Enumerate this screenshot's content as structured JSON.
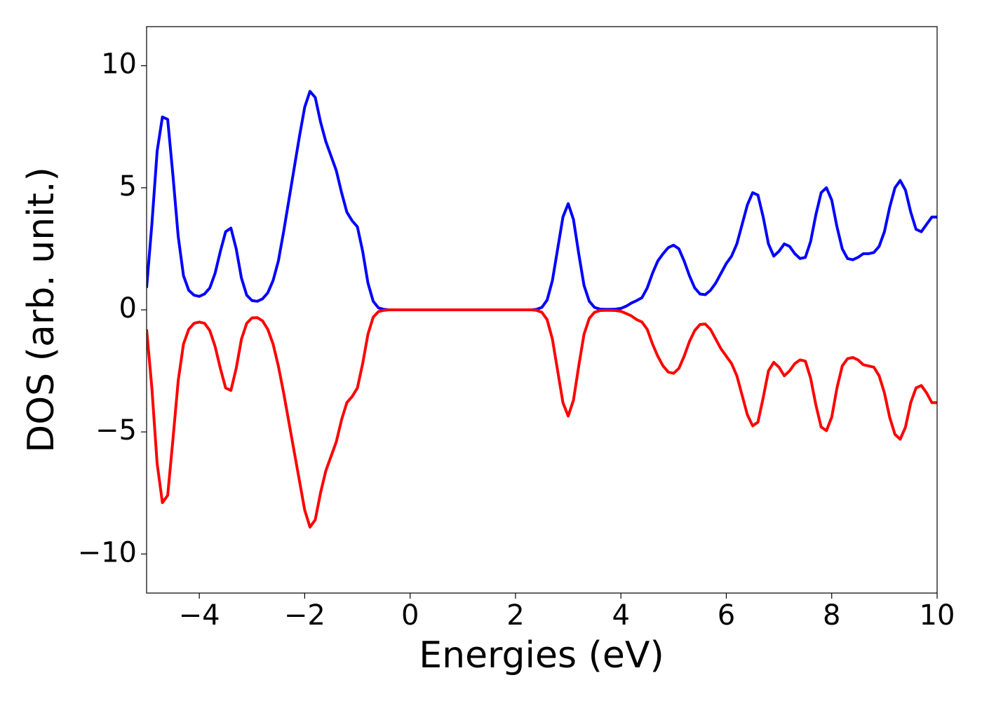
{
  "chart_data": {
    "type": "line",
    "xlabel": "Energies (eV)",
    "ylabel": "DOS (arb. unit.)",
    "xlim": [
      -5,
      10
    ],
    "ylim": [
      -11.6,
      11.6
    ],
    "xticks": [
      {
        "value": -4,
        "label": "−4"
      },
      {
        "value": -2,
        "label": "−2"
      },
      0,
      2,
      4,
      6,
      8,
      10
    ],
    "yticks": [
      {
        "value": -10,
        "label": "−10"
      },
      {
        "value": -5,
        "label": "−5"
      },
      0,
      5,
      10
    ],
    "grid": false,
    "x": [
      -5.0,
      -4.9,
      -4.8,
      -4.7,
      -4.6,
      -4.5,
      -4.4,
      -4.3,
      -4.2,
      -4.1,
      -4.0,
      -3.9,
      -3.8,
      -3.7,
      -3.6,
      -3.5,
      -3.4,
      -3.3,
      -3.2,
      -3.1,
      -3.0,
      -2.9,
      -2.8,
      -2.7,
      -2.6,
      -2.5,
      -2.4,
      -2.3,
      -2.2,
      -2.1,
      -2.0,
      -1.9,
      -1.8,
      -1.7,
      -1.6,
      -1.5,
      -1.4,
      -1.3,
      -1.2,
      -1.1,
      -1.0,
      -0.9,
      -0.8,
      -0.7,
      -0.6,
      -0.5,
      -0.4,
      -0.2,
      0,
      0.5,
      1,
      1.5,
      2,
      2.2,
      2.3,
      2.4,
      2.5,
      2.6,
      2.7,
      2.8,
      2.9,
      3.0,
      3.1,
      3.2,
      3.3,
      3.4,
      3.5,
      3.6,
      3.7,
      3.8,
      3.9,
      4.0,
      4.1,
      4.2,
      4.3,
      4.4,
      4.5,
      4.6,
      4.7,
      4.8,
      4.9,
      5.0,
      5.1,
      5.2,
      5.3,
      5.4,
      5.5,
      5.6,
      5.7,
      5.8,
      5.9,
      6.0,
      6.1,
      6.2,
      6.3,
      6.4,
      6.5,
      6.6,
      6.7,
      6.8,
      6.9,
      7.0,
      7.1,
      7.2,
      7.3,
      7.4,
      7.5,
      7.6,
      7.7,
      7.8,
      7.9,
      8.0,
      8.1,
      8.2,
      8.3,
      8.4,
      8.5,
      8.6,
      8.7,
      8.8,
      8.9,
      9.0,
      9.1,
      9.2,
      9.3,
      9.4,
      9.5,
      9.6,
      9.7,
      9.8,
      9.9,
      10.0
    ],
    "series": [
      {
        "color": "#0000ff",
        "values": [
          0.9,
          3.5,
          6.5,
          7.9,
          7.8,
          5.5,
          3.0,
          1.4,
          0.8,
          0.6,
          0.55,
          0.65,
          0.9,
          1.5,
          2.4,
          3.2,
          3.35,
          2.5,
          1.3,
          0.6,
          0.38,
          0.35,
          0.45,
          0.7,
          1.2,
          2.0,
          3.2,
          4.5,
          5.8,
          7.1,
          8.3,
          8.95,
          8.7,
          7.7,
          6.9,
          6.3,
          5.7,
          4.8,
          4.0,
          3.65,
          3.4,
          2.4,
          1.1,
          0.35,
          0.08,
          0.02,
          0,
          0,
          0,
          0,
          0,
          0,
          0,
          0,
          0,
          0.02,
          0.1,
          0.4,
          1.2,
          2.5,
          3.8,
          4.35,
          3.7,
          2.3,
          1.0,
          0.35,
          0.1,
          0.03,
          0.02,
          0.02,
          0.03,
          0.06,
          0.15,
          0.28,
          0.38,
          0.5,
          0.9,
          1.5,
          2.0,
          2.3,
          2.55,
          2.65,
          2.5,
          2.0,
          1.4,
          0.9,
          0.65,
          0.62,
          0.8,
          1.1,
          1.5,
          1.9,
          2.2,
          2.7,
          3.5,
          4.3,
          4.8,
          4.7,
          3.8,
          2.7,
          2.2,
          2.4,
          2.7,
          2.6,
          2.3,
          2.1,
          2.15,
          2.8,
          3.9,
          4.8,
          5.0,
          4.5,
          3.4,
          2.5,
          2.1,
          2.05,
          2.15,
          2.3,
          2.3,
          2.35,
          2.6,
          3.2,
          4.2,
          5.0,
          5.3,
          4.9,
          4.0,
          3.3,
          3.2,
          3.5,
          3.8,
          3.8
        ]
      },
      {
        "color": "#ff0000",
        "values": [
          -0.8,
          -3.2,
          -6.3,
          -7.9,
          -7.6,
          -5.3,
          -2.9,
          -1.4,
          -0.8,
          -0.55,
          -0.5,
          -0.55,
          -0.85,
          -1.5,
          -2.4,
          -3.2,
          -3.3,
          -2.4,
          -1.2,
          -0.55,
          -0.33,
          -0.32,
          -0.45,
          -0.8,
          -1.4,
          -2.3,
          -3.4,
          -4.6,
          -5.8,
          -7.0,
          -8.2,
          -8.9,
          -8.6,
          -7.5,
          -6.6,
          -6.0,
          -5.4,
          -4.5,
          -3.8,
          -3.55,
          -3.2,
          -2.2,
          -1.0,
          -0.3,
          -0.07,
          -0.02,
          0,
          0,
          0,
          0,
          0,
          0,
          0,
          0,
          0,
          -0.02,
          -0.1,
          -0.4,
          -1.2,
          -2.5,
          -3.8,
          -4.35,
          -3.7,
          -2.3,
          -1.0,
          -0.35,
          -0.1,
          -0.03,
          -0.02,
          -0.02,
          -0.03,
          -0.06,
          -0.15,
          -0.25,
          -0.4,
          -0.5,
          -0.8,
          -1.4,
          -1.9,
          -2.3,
          -2.55,
          -2.6,
          -2.4,
          -1.9,
          -1.3,
          -0.85,
          -0.6,
          -0.58,
          -0.8,
          -1.2,
          -1.6,
          -1.9,
          -2.2,
          -2.7,
          -3.5,
          -4.3,
          -4.75,
          -4.6,
          -3.6,
          -2.5,
          -2.15,
          -2.35,
          -2.7,
          -2.5,
          -2.2,
          -2.05,
          -2.1,
          -2.8,
          -3.9,
          -4.8,
          -4.95,
          -4.4,
          -3.2,
          -2.3,
          -2.0,
          -1.95,
          -2.05,
          -2.25,
          -2.3,
          -2.35,
          -2.7,
          -3.4,
          -4.4,
          -5.1,
          -5.3,
          -4.8,
          -3.8,
          -3.2,
          -3.1,
          -3.4,
          -3.8,
          -3.8
        ]
      }
    ]
  }
}
